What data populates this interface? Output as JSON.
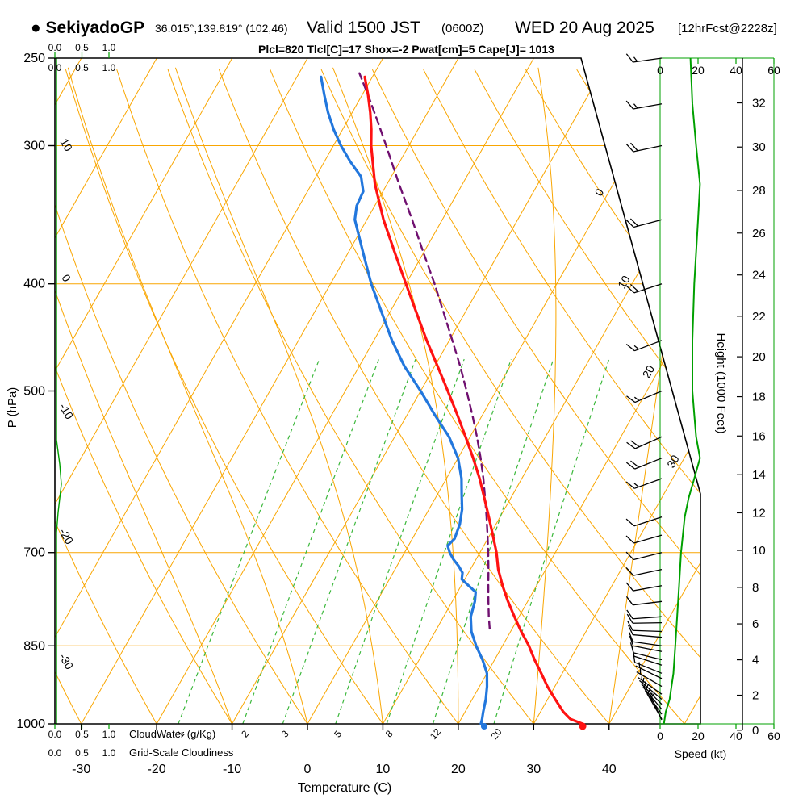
{
  "header": {
    "station_title": "● SekiyadoGP",
    "coords": "36.015°,139.819° (102,46)",
    "valid_main": "Valid 1500 JST",
    "valid_z": "(0600Z)",
    "valid_date": "WED 20 Aug 2025",
    "fcst": "[12hrFcst@2228z]",
    "params": "Plcl=820 Tlcl[C]=17 Shox=-2 Pwat[cm]=5 Cape[J]= 1013"
  },
  "axis_labels": {
    "pressure": "P (hPa)",
    "temperature": "Temperature (C)",
    "height": "Height (1000 Feet)",
    "speed": "Speed (kt)",
    "cloudwater": "CloudWater (g/Kg)",
    "cloudiness": "Grid-Scale Cloudiness"
  },
  "colors": {
    "grid_orange": "#f9a602",
    "mixing_green": "#3cb83c",
    "speed_green": "#00a000",
    "temp_red": "#ff1212",
    "dewpoint_blue": "#2277dd",
    "parcel_purple": "#701070",
    "params_magenta": "#bb22bb",
    "frame_black": "#000000"
  },
  "chart_data": {
    "type": "line",
    "subtype": "skew-t log-p sounding",
    "pressure_ticks": [
      250,
      300,
      400,
      500,
      700,
      850,
      1000
    ],
    "temp_ticks_c": [
      -30,
      -20,
      -10,
      0,
      10,
      20,
      30,
      40
    ],
    "height_ticks_kft": [
      0,
      2,
      4,
      6,
      8,
      10,
      12,
      14,
      16,
      18,
      20,
      22,
      24,
      26,
      28,
      30,
      32
    ],
    "speed_ticks_kt": [
      0,
      20,
      40,
      60
    ],
    "cloud_scale": [
      "0.0",
      "0.5",
      "1.0"
    ],
    "mixing_ratio_gkg": [
      1,
      2,
      3,
      5,
      8,
      12,
      20
    ],
    "moist_adiabats": [
      -10,
      0,
      10,
      20,
      30,
      40
    ],
    "adiabat_labels_left": [
      10,
      0,
      -10,
      -20,
      -30
    ],
    "isotherm_labels_diagonal": [
      0,
      10,
      20,
      30
    ],
    "ylim_hpa": [
      250,
      1000
    ],
    "xlim_c": [
      -33.5,
      52
    ],
    "surface": {
      "temp_c": 36.5,
      "dewpoint_c": 23
    },
    "series": {
      "temperature_c": [
        [
          1000,
          36.5
        ],
        [
          990,
          34.5
        ],
        [
          975,
          33
        ],
        [
          950,
          31
        ],
        [
          925,
          29
        ],
        [
          900,
          27.2
        ],
        [
          875,
          25.3
        ],
        [
          850,
          23.5
        ],
        [
          825,
          21.4
        ],
        [
          800,
          19.4
        ],
        [
          775,
          17.4
        ],
        [
          750,
          15.5
        ],
        [
          725,
          13.7
        ],
        [
          700,
          12.2
        ],
        [
          675,
          10.4
        ],
        [
          650,
          8.5
        ],
        [
          625,
          6.5
        ],
        [
          600,
          4.4
        ],
        [
          575,
          2
        ],
        [
          550,
          -0.6
        ],
        [
          525,
          -3.4
        ],
        [
          500,
          -6.4
        ],
        [
          475,
          -9.6
        ],
        [
          450,
          -13
        ],
        [
          425,
          -16.4
        ],
        [
          400,
          -20
        ],
        [
          375,
          -23.8
        ],
        [
          350,
          -27.8
        ],
        [
          325,
          -31.6
        ],
        [
          300,
          -35
        ],
        [
          290,
          -36.2
        ],
        [
          280,
          -37.6
        ],
        [
          270,
          -39.2
        ],
        [
          260,
          -41
        ]
      ],
      "dewpoint_c": [
        [
          1000,
          23
        ],
        [
          990,
          22.8
        ],
        [
          975,
          22.4
        ],
        [
          950,
          21.8
        ],
        [
          925,
          21
        ],
        [
          900,
          20
        ],
        [
          875,
          18.4
        ],
        [
          850,
          16.5
        ],
        [
          825,
          14.8
        ],
        [
          800,
          13.6
        ],
        [
          775,
          13
        ],
        [
          760,
          12.4
        ],
        [
          750,
          11
        ],
        [
          740,
          9.6
        ],
        [
          730,
          9.2
        ],
        [
          720,
          8.2
        ],
        [
          710,
          7
        ],
        [
          700,
          6
        ],
        [
          690,
          5.2
        ],
        [
          680,
          5.6
        ],
        [
          660,
          5.2
        ],
        [
          640,
          4.4
        ],
        [
          620,
          3.2
        ],
        [
          600,
          2
        ],
        [
          575,
          0
        ],
        [
          550,
          -2.8
        ],
        [
          525,
          -6.4
        ],
        [
          500,
          -10
        ],
        [
          475,
          -14
        ],
        [
          450,
          -17.6
        ],
        [
          425,
          -21
        ],
        [
          400,
          -24.6
        ],
        [
          375,
          -28
        ],
        [
          350,
          -31.6
        ],
        [
          340,
          -32.4
        ],
        [
          330,
          -32.6
        ],
        [
          320,
          -34
        ],
        [
          310,
          -36.6
        ],
        [
          300,
          -39
        ],
        [
          290,
          -41.2
        ],
        [
          280,
          -43.2
        ],
        [
          270,
          -45
        ],
        [
          260,
          -46.8
        ]
      ],
      "parcel_c": [
        [
          820,
          17
        ],
        [
          800,
          16
        ],
        [
          775,
          14.8
        ],
        [
          750,
          13.6
        ],
        [
          725,
          12.4
        ],
        [
          700,
          11.1
        ],
        [
          675,
          9.7
        ],
        [
          650,
          8.2
        ],
        [
          625,
          6.6
        ],
        [
          600,
          4.9
        ],
        [
          575,
          3
        ],
        [
          550,
          0.9
        ],
        [
          525,
          -1.4
        ],
        [
          500,
          -3.9
        ],
        [
          475,
          -6.6
        ],
        [
          450,
          -9.6
        ],
        [
          425,
          -12.8
        ],
        [
          400,
          -16.2
        ],
        [
          375,
          -20
        ],
        [
          350,
          -24
        ],
        [
          325,
          -28.4
        ],
        [
          300,
          -33
        ],
        [
          285,
          -36
        ],
        [
          270,
          -39.2
        ],
        [
          258,
          -42
        ]
      ],
      "wind_speed_kt": [
        [
          1000,
          2
        ],
        [
          975,
          3
        ],
        [
          950,
          5
        ],
        [
          925,
          6
        ],
        [
          900,
          7
        ],
        [
          850,
          8
        ],
        [
          800,
          9
        ],
        [
          750,
          10
        ],
        [
          700,
          11
        ],
        [
          650,
          13
        ],
        [
          625,
          15
        ],
        [
          600,
          18
        ],
        [
          575,
          21
        ],
        [
          550,
          19
        ],
        [
          525,
          18
        ],
        [
          500,
          17
        ],
        [
          450,
          17
        ],
        [
          400,
          18
        ],
        [
          350,
          20
        ],
        [
          325,
          21
        ],
        [
          300,
          19
        ],
        [
          275,
          17
        ],
        [
          250,
          16
        ]
      ],
      "wind_barbs": [
        [
          1000,
          335,
          3
        ],
        [
          990,
          330,
          4
        ],
        [
          980,
          325,
          4
        ],
        [
          970,
          320,
          5
        ],
        [
          960,
          315,
          5
        ],
        [
          950,
          310,
          6
        ],
        [
          940,
          305,
          6
        ],
        [
          925,
          300,
          7
        ],
        [
          910,
          296,
          7
        ],
        [
          900,
          292,
          8
        ],
        [
          885,
          288,
          8
        ],
        [
          875,
          284,
          8
        ],
        [
          860,
          281,
          9
        ],
        [
          850,
          278,
          9
        ],
        [
          835,
          275,
          9
        ],
        [
          825,
          272,
          9
        ],
        [
          810,
          269,
          10
        ],
        [
          800,
          266,
          10
        ],
        [
          775,
          263,
          10
        ],
        [
          750,
          260,
          10
        ],
        [
          725,
          258,
          11
        ],
        [
          700,
          256,
          11
        ],
        [
          675,
          254,
          12
        ],
        [
          650,
          252,
          12
        ],
        [
          600,
          250,
          15
        ],
        [
          575,
          248,
          18
        ],
        [
          550,
          246,
          19
        ],
        [
          500,
          247,
          17
        ],
        [
          450,
          249,
          17
        ],
        [
          400,
          252,
          18
        ],
        [
          350,
          255,
          20
        ],
        [
          300,
          258,
          19
        ],
        [
          275,
          260,
          17
        ],
        [
          250,
          262,
          16
        ]
      ]
    }
  }
}
